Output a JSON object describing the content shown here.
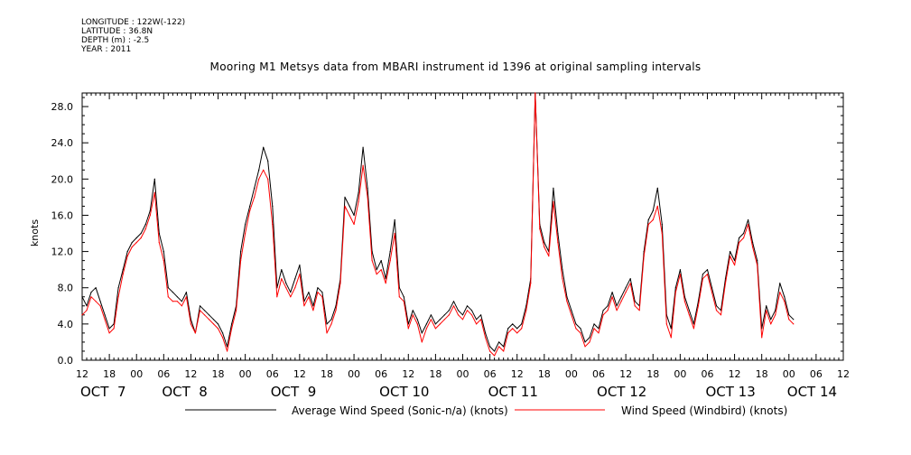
{
  "header": {
    "longitude": "LONGITUDE : 122W(-122)",
    "latitude": "LATITUDE : 36.8N",
    "depth": "DEPTH (m) : -2.5",
    "year": "YEAR : 2011"
  },
  "chart_data": {
    "type": "line",
    "title": "Mooring M1 Metsys data from MBARI instrument id 1396 at original sampling intervals",
    "ylabel": "knots",
    "xlabel": "",
    "ylim": [
      0,
      29.5
    ],
    "yticks": [
      "0.0",
      "4.0",
      "8.0",
      "12.0",
      "16.0",
      "20.0",
      "24.0",
      "28.0"
    ],
    "x_units": "hours since Oct 7 12:00",
    "xlim": [
      0,
      168
    ],
    "hour_tick_labels": [
      "12",
      "18",
      "00",
      "06",
      "12",
      "18",
      "00",
      "06",
      "12",
      "18",
      "00",
      "06",
      "12",
      "18",
      "00",
      "06",
      "12",
      "18",
      "00",
      "06",
      "12",
      "18",
      "00",
      "06",
      "12",
      "18",
      "00",
      "06",
      "12"
    ],
    "date_labels": [
      "OCT  7",
      "OCT  8",
      "OCT  9",
      "OCT 10",
      "OCT 11",
      "OCT 12",
      "OCT 13",
      "OCT 14"
    ],
    "date_label_hours": [
      0,
      18,
      42,
      66,
      90,
      114,
      138,
      156
    ],
    "grid": false,
    "legend_position": "bottom",
    "series": [
      {
        "name": "Average Wind Speed (Sonic-n/a) (knots)",
        "color": "#000000",
        "points": [
          [
            0,
            7.0
          ],
          [
            1,
            6.0
          ],
          [
            2,
            7.5
          ],
          [
            3,
            8.0
          ],
          [
            4,
            6.5
          ],
          [
            5,
            5.0
          ],
          [
            6,
            3.5
          ],
          [
            7,
            4.0
          ],
          [
            8,
            8.0
          ],
          [
            9,
            10.0
          ],
          [
            10,
            12.0
          ],
          [
            11,
            13.0
          ],
          [
            12,
            13.5
          ],
          [
            13,
            14.0
          ],
          [
            14,
            15.0
          ],
          [
            15,
            16.5
          ],
          [
            16,
            20.0
          ],
          [
            17,
            14.0
          ],
          [
            18,
            12.0
          ],
          [
            19,
            8.0
          ],
          [
            20,
            7.5
          ],
          [
            21,
            7.0
          ],
          [
            22,
            6.5
          ],
          [
            23,
            7.5
          ],
          [
            24,
            4.5
          ],
          [
            25,
            3.0
          ],
          [
            26,
            6.0
          ],
          [
            27,
            5.5
          ],
          [
            28,
            5.0
          ],
          [
            29,
            4.5
          ],
          [
            30,
            4.0
          ],
          [
            31,
            3.0
          ],
          [
            32,
            1.5
          ],
          [
            33,
            4.0
          ],
          [
            34,
            6.0
          ],
          [
            35,
            12.0
          ],
          [
            36,
            15.0
          ],
          [
            37,
            17.0
          ],
          [
            38,
            19.0
          ],
          [
            39,
            21.0
          ],
          [
            40,
            23.5
          ],
          [
            41,
            22.0
          ],
          [
            42,
            17.0
          ],
          [
            43,
            8.0
          ],
          [
            44,
            10.0
          ],
          [
            45,
            8.5
          ],
          [
            46,
            7.5
          ],
          [
            47,
            9.0
          ],
          [
            48,
            10.5
          ],
          [
            49,
            6.5
          ],
          [
            50,
            7.5
          ],
          [
            51,
            6.0
          ],
          [
            52,
            8.0
          ],
          [
            53,
            7.5
          ],
          [
            54,
            4.0
          ],
          [
            55,
            4.5
          ],
          [
            56,
            6.0
          ],
          [
            57,
            9.0
          ],
          [
            58,
            18.0
          ],
          [
            59,
            17.0
          ],
          [
            60,
            16.0
          ],
          [
            61,
            18.5
          ],
          [
            62,
            23.5
          ],
          [
            63,
            19.0
          ],
          [
            64,
            12.0
          ],
          [
            65,
            10.0
          ],
          [
            66,
            11.0
          ],
          [
            67,
            9.0
          ],
          [
            68,
            12.0
          ],
          [
            69,
            15.5
          ],
          [
            70,
            8.0
          ],
          [
            71,
            7.0
          ],
          [
            72,
            4.0
          ],
          [
            73,
            5.5
          ],
          [
            74,
            4.5
          ],
          [
            75,
            3.0
          ],
          [
            76,
            4.0
          ],
          [
            77,
            5.0
          ],
          [
            78,
            4.0
          ],
          [
            79,
            4.5
          ],
          [
            80,
            5.0
          ],
          [
            81,
            5.5
          ],
          [
            82,
            6.5
          ],
          [
            83,
            5.5
          ],
          [
            84,
            5.0
          ],
          [
            85,
            6.0
          ],
          [
            86,
            5.5
          ],
          [
            87,
            4.5
          ],
          [
            88,
            5.0
          ],
          [
            89,
            3.0
          ],
          [
            90,
            1.5
          ],
          [
            91,
            1.0
          ],
          [
            92,
            2.0
          ],
          [
            93,
            1.5
          ],
          [
            94,
            3.5
          ],
          [
            95,
            4.0
          ],
          [
            96,
            3.5
          ],
          [
            97,
            4.0
          ],
          [
            98,
            6.0
          ],
          [
            99,
            9.0
          ],
          [
            100,
            29.5
          ],
          [
            101,
            15.0
          ],
          [
            102,
            13.0
          ],
          [
            103,
            12.0
          ],
          [
            104,
            19.0
          ],
          [
            105,
            14.0
          ],
          [
            106,
            10.0
          ],
          [
            107,
            7.0
          ],
          [
            108,
            5.5
          ],
          [
            109,
            4.0
          ],
          [
            110,
            3.5
          ],
          [
            111,
            2.0
          ],
          [
            112,
            2.5
          ],
          [
            113,
            4.0
          ],
          [
            114,
            3.5
          ],
          [
            115,
            5.5
          ],
          [
            116,
            6.0
          ],
          [
            117,
            7.5
          ],
          [
            118,
            6.0
          ],
          [
            119,
            7.0
          ],
          [
            120,
            8.0
          ],
          [
            121,
            9.0
          ],
          [
            122,
            6.5
          ],
          [
            123,
            6.0
          ],
          [
            124,
            12.0
          ],
          [
            125,
            15.5
          ],
          [
            126,
            16.5
          ],
          [
            127,
            19.0
          ],
          [
            128,
            15.0
          ],
          [
            129,
            5.0
          ],
          [
            130,
            3.5
          ],
          [
            131,
            8.0
          ],
          [
            132,
            10.0
          ],
          [
            133,
            7.0
          ],
          [
            134,
            5.5
          ],
          [
            135,
            4.0
          ],
          [
            136,
            6.5
          ],
          [
            137,
            9.5
          ],
          [
            138,
            10.0
          ],
          [
            139,
            8.0
          ],
          [
            140,
            6.0
          ],
          [
            141,
            5.5
          ],
          [
            142,
            9.0
          ],
          [
            143,
            12.0
          ],
          [
            144,
            11.0
          ],
          [
            145,
            13.5
          ],
          [
            146,
            14.0
          ],
          [
            147,
            15.5
          ],
          [
            148,
            13.0
          ],
          [
            149,
            11.0
          ],
          [
            150,
            3.5
          ],
          [
            151,
            6.0
          ],
          [
            152,
            4.5
          ],
          [
            153,
            5.5
          ],
          [
            154,
            8.5
          ],
          [
            155,
            7.0
          ],
          [
            156,
            5.0
          ],
          [
            157,
            4.5
          ]
        ]
      },
      {
        "name": "Wind Speed (Windbird) (knots)",
        "color": "#ff0000",
        "points": [
          [
            0,
            5.0
          ],
          [
            1,
            5.5
          ],
          [
            2,
            7.0
          ],
          [
            3,
            6.5
          ],
          [
            4,
            6.0
          ],
          [
            5,
            4.5
          ],
          [
            6,
            3.0
          ],
          [
            7,
            3.5
          ],
          [
            8,
            7.0
          ],
          [
            9,
            9.5
          ],
          [
            10,
            11.5
          ],
          [
            11,
            12.5
          ],
          [
            12,
            13.0
          ],
          [
            13,
            13.5
          ],
          [
            14,
            14.5
          ],
          [
            15,
            16.0
          ],
          [
            16,
            18.5
          ],
          [
            17,
            13.0
          ],
          [
            18,
            11.0
          ],
          [
            19,
            7.0
          ],
          [
            20,
            6.5
          ],
          [
            21,
            6.5
          ],
          [
            22,
            6.0
          ],
          [
            23,
            7.0
          ],
          [
            24,
            4.0
          ],
          [
            25,
            3.0
          ],
          [
            26,
            5.5
          ],
          [
            27,
            5.0
          ],
          [
            28,
            4.5
          ],
          [
            29,
            4.0
          ],
          [
            30,
            3.5
          ],
          [
            31,
            2.5
          ],
          [
            32,
            1.0
          ],
          [
            33,
            3.5
          ],
          [
            34,
            5.5
          ],
          [
            35,
            11.0
          ],
          [
            36,
            14.0
          ],
          [
            37,
            16.5
          ],
          [
            38,
            18.0
          ],
          [
            39,
            20.0
          ],
          [
            40,
            21.0
          ],
          [
            41,
            20.0
          ],
          [
            42,
            15.0
          ],
          [
            43,
            7.0
          ],
          [
            44,
            9.0
          ],
          [
            45,
            8.0
          ],
          [
            46,
            7.0
          ],
          [
            47,
            8.0
          ],
          [
            48,
            9.5
          ],
          [
            49,
            6.0
          ],
          [
            50,
            7.0
          ],
          [
            51,
            5.5
          ],
          [
            52,
            7.5
          ],
          [
            53,
            7.0
          ],
          [
            54,
            3.0
          ],
          [
            55,
            4.0
          ],
          [
            56,
            5.5
          ],
          [
            57,
            8.5
          ],
          [
            58,
            17.0
          ],
          [
            59,
            16.0
          ],
          [
            60,
            15.0
          ],
          [
            61,
            17.5
          ],
          [
            62,
            21.5
          ],
          [
            63,
            18.0
          ],
          [
            64,
            11.0
          ],
          [
            65,
            9.5
          ],
          [
            66,
            10.0
          ],
          [
            67,
            8.5
          ],
          [
            68,
            11.0
          ],
          [
            69,
            14.0
          ],
          [
            70,
            7.0
          ],
          [
            71,
            6.5
          ],
          [
            72,
            3.5
          ],
          [
            73,
            5.0
          ],
          [
            74,
            4.0
          ],
          [
            75,
            2.0
          ],
          [
            76,
            3.5
          ],
          [
            77,
            4.5
          ],
          [
            78,
            3.5
          ],
          [
            79,
            4.0
          ],
          [
            80,
            4.5
          ],
          [
            81,
            5.0
          ],
          [
            82,
            6.0
          ],
          [
            83,
            5.0
          ],
          [
            84,
            4.5
          ],
          [
            85,
            5.5
          ],
          [
            86,
            5.0
          ],
          [
            87,
            4.0
          ],
          [
            88,
            4.5
          ],
          [
            89,
            2.5
          ],
          [
            90,
            1.0
          ],
          [
            91,
            0.5
          ],
          [
            92,
            1.5
          ],
          [
            93,
            1.0
          ],
          [
            94,
            3.0
          ],
          [
            95,
            3.5
          ],
          [
            96,
            3.0
          ],
          [
            97,
            3.5
          ],
          [
            98,
            5.5
          ],
          [
            99,
            8.5
          ],
          [
            100,
            29.5
          ],
          [
            101,
            14.5
          ],
          [
            102,
            12.5
          ],
          [
            103,
            11.5
          ],
          [
            104,
            17.5
          ],
          [
            105,
            13.0
          ],
          [
            106,
            9.0
          ],
          [
            107,
            6.5
          ],
          [
            108,
            5.0
          ],
          [
            109,
            3.5
          ],
          [
            110,
            3.0
          ],
          [
            111,
            1.5
          ],
          [
            112,
            2.0
          ],
          [
            113,
            3.5
          ],
          [
            114,
            3.0
          ],
          [
            115,
            5.0
          ],
          [
            116,
            5.5
          ],
          [
            117,
            7.0
          ],
          [
            118,
            5.5
          ],
          [
            119,
            6.5
          ],
          [
            120,
            7.5
          ],
          [
            121,
            8.5
          ],
          [
            122,
            6.0
          ],
          [
            123,
            5.5
          ],
          [
            124,
            11.5
          ],
          [
            125,
            15.0
          ],
          [
            126,
            15.5
          ],
          [
            127,
            17.0
          ],
          [
            128,
            14.0
          ],
          [
            129,
            4.0
          ],
          [
            130,
            2.5
          ],
          [
            131,
            7.5
          ],
          [
            132,
            9.5
          ],
          [
            133,
            6.5
          ],
          [
            134,
            5.0
          ],
          [
            135,
            3.5
          ],
          [
            136,
            6.0
          ],
          [
            137,
            9.0
          ],
          [
            138,
            9.5
          ],
          [
            139,
            7.5
          ],
          [
            140,
            5.5
          ],
          [
            141,
            5.0
          ],
          [
            142,
            8.5
          ],
          [
            143,
            11.5
          ],
          [
            144,
            10.5
          ],
          [
            145,
            13.0
          ],
          [
            146,
            13.5
          ],
          [
            147,
            15.0
          ],
          [
            148,
            12.5
          ],
          [
            149,
            10.5
          ],
          [
            150,
            2.5
          ],
          [
            151,
            5.5
          ],
          [
            152,
            4.0
          ],
          [
            153,
            5.0
          ],
          [
            154,
            7.5
          ],
          [
            155,
            6.5
          ],
          [
            156,
            4.5
          ],
          [
            157,
            4.0
          ]
        ]
      }
    ]
  }
}
